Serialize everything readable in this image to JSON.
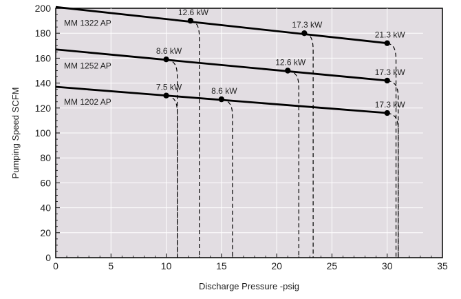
{
  "chart_data": {
    "type": "line",
    "title": "",
    "xlabel": "Discharge Pressure -psig",
    "ylabel": "Pumping Speed SCFM",
    "xlim": [
      0,
      35
    ],
    "ylim": [
      0,
      200
    ],
    "x_ticks": [
      "0",
      "5",
      "10",
      "15",
      "20",
      "25",
      "30",
      "35"
    ],
    "y_ticks": [
      "0",
      "20",
      "40",
      "60",
      "80",
      "100",
      "120",
      "140",
      "160",
      "180",
      "200"
    ],
    "grid": true,
    "colors": {
      "plot_bg": "#e2dde2",
      "line": "#000000",
      "grid": "#ffffff"
    },
    "series": [
      {
        "name": "MM 1322 AP",
        "line": {
          "x": [
            0,
            30
          ],
          "y": [
            201,
            172
          ]
        },
        "label_at": [
          0.5,
          188
        ],
        "points": [
          {
            "x": 12.2,
            "y": 190,
            "label": "12.6 kW",
            "drop_x": 13.0
          },
          {
            "x": 22.5,
            "y": 180,
            "label": "17.3 kW",
            "drop_x": 23.3
          },
          {
            "x": 30.0,
            "y": 172,
            "label": "21.3 kW",
            "drop_x": 30.8
          }
        ]
      },
      {
        "name": "MM 1252 AP",
        "line": {
          "x": [
            0,
            30
          ],
          "y": [
            167,
            142
          ]
        },
        "label_at": [
          0.5,
          154
        ],
        "points": [
          {
            "x": 10.0,
            "y": 159,
            "label": "8.6 kW",
            "drop_x": 11.0
          },
          {
            "x": 21.0,
            "y": 150,
            "label": "12.6 kW",
            "drop_x": 22.0
          },
          {
            "x": 30.0,
            "y": 142,
            "label": "17.3 kW",
            "drop_x": 31.0
          }
        ]
      },
      {
        "name": "MM 1202 AP",
        "line": {
          "x": [
            0,
            30
          ],
          "y": [
            137,
            116
          ]
        },
        "label_at": [
          0.5,
          125
        ],
        "points": [
          {
            "x": 10.0,
            "y": 130,
            "label": "7.5 kW",
            "drop_x": 11.0
          },
          {
            "x": 15.0,
            "y": 127,
            "label": "8.6 kW",
            "drop_x": 16.0
          },
          {
            "x": 30.0,
            "y": 116,
            "label": "17.3 kW",
            "drop_x": 31.0
          }
        ]
      }
    ]
  }
}
